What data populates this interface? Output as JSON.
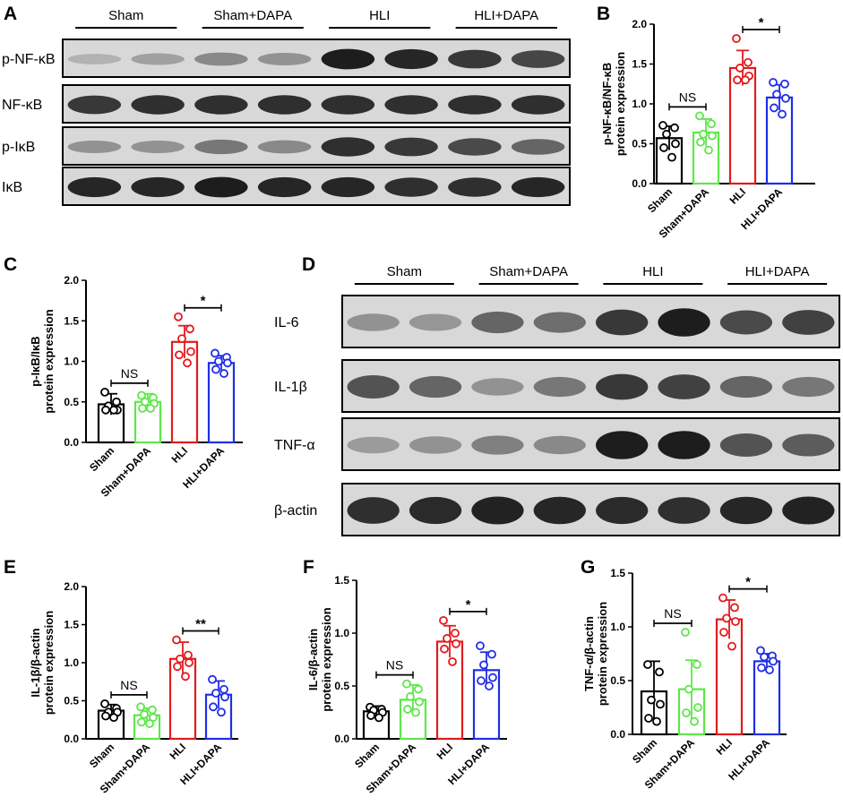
{
  "panels": {
    "a": "A",
    "b": "B",
    "c": "C",
    "d": "D",
    "e": "E",
    "f": "F",
    "g": "G"
  },
  "blot_a": {
    "groups": [
      "Sham",
      "Sham+DAPA",
      "HLI",
      "HLI+DAPA"
    ],
    "rows": [
      {
        "label": "p-NF-κB",
        "intensities": [
          0.12,
          0.22,
          0.35,
          0.3,
          0.95,
          0.9,
          0.8,
          0.72
        ]
      },
      {
        "label": "NF-κB",
        "intensities": [
          0.8,
          0.85,
          0.85,
          0.85,
          0.85,
          0.85,
          0.85,
          0.85
        ]
      },
      {
        "label": "p-IκB",
        "intensities": [
          0.3,
          0.3,
          0.45,
          0.35,
          0.85,
          0.8,
          0.7,
          0.55
        ]
      },
      {
        "label": "IκB",
        "intensities": [
          0.9,
          0.9,
          0.95,
          0.9,
          0.9,
          0.85,
          0.85,
          0.9
        ]
      }
    ]
  },
  "blot_d": {
    "groups": [
      "Sham",
      "Sham+DAPA",
      "HLI",
      "HLI+DAPA"
    ],
    "rows": [
      {
        "label": "IL-6",
        "intensities": [
          0.3,
          0.28,
          0.55,
          0.5,
          0.8,
          0.95,
          0.7,
          0.75
        ]
      },
      {
        "label": "IL-1β",
        "intensities": [
          0.65,
          0.55,
          0.3,
          0.45,
          0.8,
          0.75,
          0.55,
          0.45
        ]
      },
      {
        "label": "TNF-α",
        "intensities": [
          0.25,
          0.3,
          0.4,
          0.35,
          0.95,
          0.95,
          0.65,
          0.6
        ]
      },
      {
        "label": "β-actin",
        "intensities": [
          0.85,
          0.88,
          0.92,
          0.9,
          0.88,
          0.85,
          0.9,
          0.92
        ]
      }
    ]
  },
  "chart_data": [
    {
      "id": "B",
      "type": "bar",
      "categories": [
        "Sham",
        "Sham+DAPA",
        "HLI",
        "HLI+DAPA"
      ],
      "colors": [
        "#000000",
        "#5ee64a",
        "#e31a1c",
        "#1f2ee6"
      ],
      "values": [
        0.57,
        0.64,
        1.45,
        1.08
      ],
      "errors": [
        0.15,
        0.17,
        0.22,
        0.16
      ],
      "points": [
        [
          0.73,
          0.7,
          0.62,
          0.5,
          0.45,
          0.33
        ],
        [
          0.85,
          0.75,
          0.62,
          0.6,
          0.52,
          0.42
        ],
        [
          1.82,
          1.52,
          1.45,
          1.35,
          1.3,
          1.3
        ],
        [
          1.27,
          1.25,
          1.12,
          1.07,
          0.95,
          0.87
        ]
      ],
      "ylabel": [
        "p-NF-κB/NF-κB",
        "protein expression"
      ],
      "ylim": [
        0,
        2.0
      ],
      "yticks": [
        "0.0",
        "0.5",
        "1.0",
        "1.5",
        "2.0"
      ],
      "comparisons": [
        {
          "from": 0,
          "to": 1,
          "label": "NS"
        },
        {
          "from": 2,
          "to": 3,
          "label": "*"
        }
      ]
    },
    {
      "id": "C",
      "type": "bar",
      "categories": [
        "Sham",
        "Sham+DAPA",
        "HLI",
        "HLI+DAPA"
      ],
      "colors": [
        "#000000",
        "#5ee64a",
        "#e31a1c",
        "#1f2ee6"
      ],
      "values": [
        0.47,
        0.5,
        1.24,
        0.98
      ],
      "errors": [
        0.13,
        0.1,
        0.2,
        0.09
      ],
      "points": [
        [
          0.62,
          0.5,
          0.45,
          0.4,
          0.4,
          0.4
        ],
        [
          0.58,
          0.55,
          0.5,
          0.48,
          0.42,
          0.42
        ],
        [
          1.55,
          1.4,
          1.28,
          1.12,
          1.08,
          0.98
        ],
        [
          1.1,
          1.05,
          1.0,
          0.98,
          0.9,
          0.85
        ]
      ],
      "ylabel": [
        "p-IκB/IκB",
        "protein expression"
      ],
      "ylim": [
        0,
        2.0
      ],
      "yticks": [
        "0.0",
        "0.5",
        "1.0",
        "1.5",
        "2.0"
      ],
      "comparisons": [
        {
          "from": 0,
          "to": 1,
          "label": "NS"
        },
        {
          "from": 2,
          "to": 3,
          "label": "*"
        }
      ]
    },
    {
      "id": "E",
      "type": "bar",
      "categories": [
        "Sham",
        "Sham+DAPA",
        "HLI",
        "HLI+DAPA"
      ],
      "colors": [
        "#000000",
        "#5ee64a",
        "#e31a1c",
        "#1f2ee6"
      ],
      "values": [
        0.37,
        0.31,
        1.05,
        0.58
      ],
      "errors": [
        0.08,
        0.09,
        0.22,
        0.18
      ],
      "points": [
        [
          0.46,
          0.4,
          0.35,
          0.35,
          0.3,
          0.28
        ],
        [
          0.42,
          0.38,
          0.32,
          0.28,
          0.22,
          0.2
        ],
        [
          1.3,
          1.1,
          1.05,
          1.0,
          0.95,
          0.82
        ],
        [
          0.78,
          0.65,
          0.6,
          0.55,
          0.42,
          0.35
        ]
      ],
      "ylabel": [
        "IL-1β/β-actin",
        "protein expression"
      ],
      "ylim": [
        0,
        2.0
      ],
      "yticks": [
        "0.0",
        "0.5",
        "1.0",
        "1.5",
        "2.0"
      ],
      "comparisons": [
        {
          "from": 0,
          "to": 1,
          "label": "NS"
        },
        {
          "from": 2,
          "to": 3,
          "label": "**"
        }
      ]
    },
    {
      "id": "F",
      "type": "bar",
      "categories": [
        "Sham",
        "Sham+DAPA",
        "HLI",
        "HLI+DAPA"
      ],
      "colors": [
        "#000000",
        "#5ee64a",
        "#e31a1c",
        "#1f2ee6"
      ],
      "values": [
        0.26,
        0.37,
        0.92,
        0.65
      ],
      "errors": [
        0.05,
        0.14,
        0.15,
        0.17
      ],
      "points": [
        [
          0.3,
          0.28,
          0.27,
          0.25,
          0.22,
          0.2
        ],
        [
          0.52,
          0.47,
          0.4,
          0.35,
          0.28,
          0.25
        ],
        [
          1.12,
          1.0,
          0.95,
          0.9,
          0.85,
          0.73
        ],
        [
          0.88,
          0.8,
          0.7,
          0.58,
          0.55,
          0.5
        ]
      ],
      "ylabel": [
        "IL-6/β-actin",
        "protein expression"
      ],
      "ylim": [
        0,
        1.5
      ],
      "yticks": [
        "0.0",
        "0.5",
        "1.0",
        "1.5"
      ],
      "comparisons": [
        {
          "from": 0,
          "to": 1,
          "label": "NS"
        },
        {
          "from": 2,
          "to": 3,
          "label": "*"
        }
      ]
    },
    {
      "id": "G",
      "type": "bar",
      "categories": [
        "Sham",
        "Sham+DAPA",
        "HLI",
        "HLI+DAPA"
      ],
      "colors": [
        "#000000",
        "#5ee64a",
        "#e31a1c",
        "#1f2ee6"
      ],
      "values": [
        0.4,
        0.42,
        1.07,
        0.68
      ],
      "errors": [
        0.28,
        0.27,
        0.18,
        0.07
      ],
      "points": [
        [
          0.65,
          0.58,
          0.32,
          0.28,
          0.15,
          0.12
        ],
        [
          0.95,
          0.65,
          0.42,
          0.25,
          0.2,
          0.12
        ],
        [
          1.27,
          1.18,
          1.08,
          1.05,
          0.95,
          0.82
        ],
        [
          0.78,
          0.73,
          0.72,
          0.68,
          0.62,
          0.6
        ]
      ],
      "ylabel": [
        "TNF-α/β-actin",
        "protein expression"
      ],
      "ylim": [
        0,
        1.5
      ],
      "yticks": [
        "0.0",
        "0.5",
        "1.0",
        "1.5"
      ],
      "comparisons": [
        {
          "from": 0,
          "to": 1,
          "label": "NS"
        },
        {
          "from": 2,
          "to": 3,
          "label": "*"
        }
      ]
    }
  ]
}
